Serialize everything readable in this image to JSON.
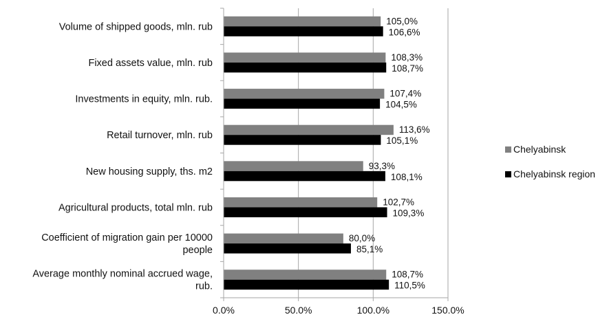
{
  "chart_data": {
    "type": "bar",
    "orientation": "horizontal",
    "categories": [
      "Volume of shipped goods, mln. rub",
      "Fixed assets value, mln. rub",
      "Investments in equity, mln. rub.",
      "Retail turnover, mln. rub",
      "New housing supply, ths. m2",
      "Agricultural products, total mln. rub",
      "Coefficient of migration gain per 10000 people",
      "Average monthly nominal accrued wage, rub."
    ],
    "category_lines": [
      [
        "Volume of shipped goods, mln. rub"
      ],
      [
        "Fixed assets value, mln. rub"
      ],
      [
        "Investments in equity, mln. rub."
      ],
      [
        "Retail turnover, mln. rub"
      ],
      [
        "New housing supply, ths. m2"
      ],
      [
        "Agricultural products, total mln. rub"
      ],
      [
        "Coefficient of migration gain per 10000",
        "people"
      ],
      [
        "Average monthly nominal accrued wage,",
        "rub."
      ]
    ],
    "series": [
      {
        "name": "Chelyabinsk",
        "color": "#808080",
        "values": [
          105.0,
          108.3,
          107.4,
          113.6,
          93.3,
          102.7,
          80.0,
          108.7
        ],
        "labels": [
          "105,0%",
          "108,3%",
          "107,4%",
          "113,6%",
          "93,3%",
          "102,7%",
          "80,0%",
          "108,7%"
        ]
      },
      {
        "name": "Chelyabinsk region",
        "color": "#000000",
        "values": [
          106.6,
          108.7,
          104.5,
          105.1,
          108.1,
          109.3,
          85.1,
          110.5
        ],
        "labels": [
          "106,6%",
          "108,7%",
          "104,5%",
          "105,1%",
          "108,1%",
          "109,3%",
          "85,1%",
          "110,5%"
        ]
      }
    ],
    "x_ticks": [
      "0.0%",
      "50.0%",
      "100.0%",
      "150.0%"
    ],
    "x_tick_values": [
      0,
      50,
      100,
      150
    ],
    "xlim": [
      0,
      150
    ],
    "unit": "%",
    "grid": "vertical",
    "grid_color": "#a6a6a6",
    "legend": "right",
    "title": "",
    "xlabel": "",
    "ylabel": ""
  }
}
